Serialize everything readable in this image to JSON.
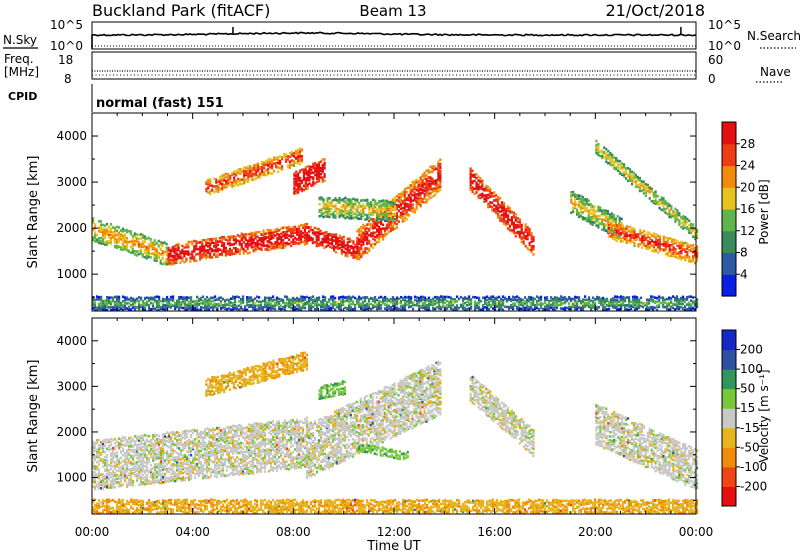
{
  "header": {
    "station": "Buckland Park (fitACF)",
    "beam": "Beam 13",
    "date": "21/Oct/2018"
  },
  "noise_panel": {
    "left_label": "N.Sky",
    "right_label": "N.Search",
    "tick_top": "10^5",
    "tick_bottom": "10^0"
  },
  "freq_panel": {
    "left_label_1": "Freq.",
    "left_label_2": "[MHz]",
    "left_tick_top": "18",
    "left_tick_bottom": "8",
    "right_label": "Nave",
    "right_tick_top": "60",
    "right_tick_bottom": "0"
  },
  "cpid_panel": {
    "label": "CPID",
    "mode_text": "normal (fast) 151"
  },
  "xaxis": {
    "title": "Time UT",
    "ticks": [
      "00:00",
      "04:00",
      "08:00",
      "12:00",
      "16:00",
      "20:00",
      "00:00"
    ]
  },
  "yaxis": {
    "title": "Slant Range [km]",
    "ticks": [
      "1000",
      "2000",
      "3000",
      "4000"
    ]
  },
  "colorbars": {
    "power": {
      "title": "Power [dB]",
      "labels": [
        "4",
        "8",
        "12",
        "16",
        "20",
        "24",
        "28"
      ],
      "colors": [
        "#0a1ee6",
        "#2d5aa0",
        "#3a8a5a",
        "#5fb44a",
        "#e6c31e",
        "#f08c0a",
        "#f03c14",
        "#e60f0f"
      ]
    },
    "velocity": {
      "title": "Velocity [m s⁻¹]",
      "labels": [
        "200",
        "100",
        "50",
        "15",
        "-15",
        "-50",
        "-100",
        "-200"
      ],
      "colors": [
        "#1428c8",
        "#2d50a0",
        "#32965a",
        "#78c83c",
        "#c8c8c8",
        "#e6b41e",
        "#f08c0a",
        "#f04614",
        "#e60f0f"
      ]
    }
  },
  "chart_data": [
    {
      "type": "heatmap",
      "title": "Power",
      "xlabel": "Time UT",
      "ylabel": "Slant Range [km]",
      "x_range_hours": [
        0,
        24
      ],
      "ylim": [
        200,
        4500
      ],
      "colorbar_label": "Power [dB]",
      "colorbar_range": [
        0,
        30
      ],
      "echo_bands": [
        {
          "t_start": 0.0,
          "t_end": 3.0,
          "range_start": 2000,
          "range_end": 1450,
          "width_km": 500,
          "level_db": 16
        },
        {
          "t_start": 3.0,
          "t_end": 8.5,
          "range_start": 1450,
          "range_end": 1900,
          "width_km": 450,
          "level_db": 26
        },
        {
          "t_start": 8.5,
          "t_end": 10.5,
          "range_start": 1900,
          "range_end": 1550,
          "width_km": 400,
          "level_db": 28
        },
        {
          "t_start": 10.5,
          "t_end": 13.8,
          "range_start": 1650,
          "range_end": 3200,
          "width_km": 700,
          "level_db": 24
        },
        {
          "t_start": 4.5,
          "t_end": 8.3,
          "range_start": 2900,
          "range_end": 3600,
          "width_km": 350,
          "level_db": 22
        },
        {
          "t_start": 8.0,
          "t_end": 9.2,
          "range_start": 3000,
          "range_end": 3300,
          "width_km": 500,
          "level_db": 28
        },
        {
          "t_start": 9.0,
          "t_end": 12.0,
          "range_start": 2500,
          "range_end": 2400,
          "width_km": 450,
          "level_db": 14
        },
        {
          "t_start": 15.0,
          "t_end": 17.5,
          "range_start": 3100,
          "range_end": 1700,
          "width_km": 500,
          "level_db": 26
        },
        {
          "t_start": 19.0,
          "t_end": 21.0,
          "range_start": 2600,
          "range_end": 2000,
          "width_km": 500,
          "level_db": 14
        },
        {
          "t_start": 20.5,
          "t_end": 24.0,
          "range_start": 2000,
          "range_end": 1450,
          "width_km": 400,
          "level_db": 22
        },
        {
          "t_start": 20.0,
          "t_end": 24.0,
          "range_start": 3800,
          "range_end": 1900,
          "width_km": 300,
          "level_db": 14
        },
        {
          "t_start": 0.0,
          "t_end": 24.0,
          "range_start": 400,
          "range_end": 400,
          "width_km": 300,
          "level_db": 8
        }
      ]
    },
    {
      "type": "heatmap",
      "title": "Velocity",
      "xlabel": "Time UT",
      "ylabel": "Slant Range [km]",
      "x_range_hours": [
        0,
        24
      ],
      "ylim": [
        200,
        4500
      ],
      "colorbar_label": "Velocity [m s⁻¹]",
      "colorbar_range": [
        -200,
        200
      ],
      "echo_bands": [
        {
          "t_start": 0.0,
          "t_end": 8.5,
          "range_start": 1300,
          "range_end": 1800,
          "width_km": 1100,
          "velocity": 0
        },
        {
          "t_start": 8.5,
          "t_end": 13.8,
          "range_start": 1600,
          "range_end": 3000,
          "width_km": 1200,
          "velocity": 0
        },
        {
          "t_start": 4.5,
          "t_end": 8.5,
          "range_start": 3000,
          "range_end": 3600,
          "width_km": 400,
          "velocity": -40
        },
        {
          "t_start": 9.0,
          "t_end": 10.0,
          "range_start": 2900,
          "range_end": 3000,
          "width_km": 300,
          "velocity": 40
        },
        {
          "t_start": 10.5,
          "t_end": 12.5,
          "range_start": 1700,
          "range_end": 1500,
          "width_km": 200,
          "velocity": 40
        },
        {
          "t_start": 15.0,
          "t_end": 17.5,
          "range_start": 3000,
          "range_end": 1800,
          "width_km": 600,
          "velocity": 0
        },
        {
          "t_start": 20.0,
          "t_end": 24.0,
          "range_start": 2200,
          "range_end": 1200,
          "width_km": 900,
          "velocity": 0
        },
        {
          "t_start": 0.0,
          "t_end": 24.0,
          "range_start": 400,
          "range_end": 400,
          "width_km": 300,
          "velocity": -40
        }
      ]
    }
  ]
}
